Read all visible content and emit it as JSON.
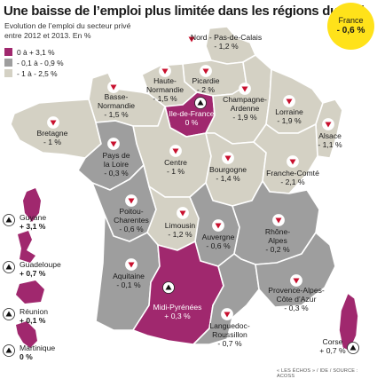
{
  "header": {
    "title": "Une baisse de l’emploi plus limitée dans les régions du sud",
    "subtitle_line1": "Evolution de l’emploi du secteur privé",
    "subtitle_line2": "entre 2012 et 2013. En %"
  },
  "legend": [
    {
      "label": "0 à + 3,1 %",
      "color": "#a0286e"
    },
    {
      "label": "- 0,1 à - 0,9 %",
      "color": "#9e9e9e"
    },
    {
      "label": "- 1 à - 2,5 %",
      "color": "#d4d1c4"
    }
  ],
  "france": {
    "name": "France",
    "value": "- 0,6 %",
    "color": "#ffe21a"
  },
  "regions": [
    {
      "name": "Nord - Pas-de-Calais",
      "value": "- 1,2 %",
      "trend": "down"
    },
    {
      "name": "Haute-Normandie",
      "value": "- 1,5 %",
      "trend": "down"
    },
    {
      "name": "Picardie",
      "value": "- 2 %",
      "trend": "down"
    },
    {
      "name": "Basse-Normandie",
      "value": "- 1,5 %",
      "trend": "down"
    },
    {
      "name": "Ile-de-France",
      "value": "0 %",
      "trend": "up"
    },
    {
      "name": "Champagne-Ardenne",
      "value": "- 1,9 %",
      "trend": "down"
    },
    {
      "name": "Lorraine",
      "value": "- 1,9 %",
      "trend": "down"
    },
    {
      "name": "Alsace",
      "value": "- 1,1 %",
      "trend": "down"
    },
    {
      "name": "Bretagne",
      "value": "- 1 %",
      "trend": "down"
    },
    {
      "name": "Pays de la Loire",
      "value": "- 0,3 %",
      "trend": "down"
    },
    {
      "name": "Centre",
      "value": "- 1 %",
      "trend": "down"
    },
    {
      "name": "Bourgogne",
      "value": "- 1,4 %",
      "trend": "down"
    },
    {
      "name": "Franche-Comté",
      "value": "- 2,1 %",
      "trend": "down"
    },
    {
      "name": "Poitou-Charentes",
      "value": "- 0,6 %",
      "trend": "down"
    },
    {
      "name": "Limousin",
      "value": "- 1,2 %",
      "trend": "down"
    },
    {
      "name": "Auvergne",
      "value": "- 0,6 %",
      "trend": "down"
    },
    {
      "name": "Rhône-Alpes",
      "value": "- 0,2 %",
      "trend": "down"
    },
    {
      "name": "Aquitaine",
      "value": "- 0,1 %",
      "trend": "down"
    },
    {
      "name": "Midi-Pyrénées",
      "value": "+ 0,3 %",
      "trend": "up"
    },
    {
      "name": "Languedoc-Roussillon",
      "value": "- 0,7 %",
      "trend": "down"
    },
    {
      "name": "Provence-Alpes-Côte d’Azur",
      "value": "- 0,3 %",
      "trend": "down"
    },
    {
      "name": "Corse",
      "value": "+ 0,7 %",
      "trend": "up"
    }
  ],
  "overseas": [
    {
      "name": "Guyane",
      "value": "+ 3,1 %",
      "trend": "up"
    },
    {
      "name": "Guadeloupe",
      "value": "+ 0,7 %",
      "trend": "up"
    },
    {
      "name": "Réunion",
      "value": "+ 0,1 %",
      "trend": "up"
    },
    {
      "name": "Martinique",
      "value": "0 %",
      "trend": "up"
    }
  ],
  "source": "« LES ÉCHOS » / IDE / SOURCE : ACOSS",
  "icons": {
    "up": "triangle-up-icon",
    "down": "triangle-down-icon"
  }
}
